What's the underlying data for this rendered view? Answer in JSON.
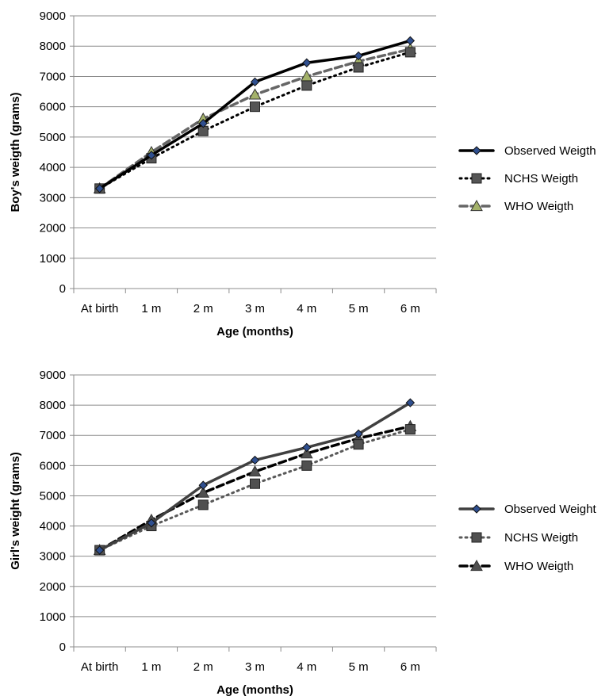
{
  "chart_data": [
    {
      "type": "line",
      "categories": [
        "At birth",
        "1 m",
        "2 m",
        "3 m",
        "4 m",
        "5 m",
        "6 m"
      ],
      "xlabel": "Age (months)",
      "ylabel": "Boy's weigth (grams)",
      "ylim": [
        0,
        9000
      ],
      "yticks": [
        0,
        1000,
        2000,
        3000,
        4000,
        5000,
        6000,
        7000,
        8000,
        9000
      ],
      "grid": true,
      "legend_position": "right",
      "series": [
        {
          "name": "Observed Weigth",
          "values": [
            3300,
            4400,
            5450,
            6820,
            7450,
            7680,
            8180
          ],
          "color": "#000000",
          "line": "solid",
          "marker": "diamond",
          "marker_fill": "#2f4f8f"
        },
        {
          "name": "NCHS Weigth",
          "values": [
            3300,
            4300,
            5200,
            6000,
            6700,
            7300,
            7800
          ],
          "color": "#000000",
          "line": "dotted",
          "marker": "square",
          "marker_fill": "#555555"
        },
        {
          "name": "WHO Weigth",
          "values": [
            3300,
            4500,
            5600,
            6400,
            7000,
            7500,
            7900
          ],
          "color": "#666666",
          "line": "dashed",
          "marker": "triangle",
          "marker_fill": "#a4b26a"
        }
      ]
    },
    {
      "type": "line",
      "categories": [
        "At birth",
        "1 m",
        "2 m",
        "3 m",
        "4 m",
        "5 m",
        "6 m"
      ],
      "xlabel": "Age (months)",
      "ylabel": "Girl's weight (grams)",
      "ylim": [
        0,
        9000
      ],
      "yticks": [
        0,
        1000,
        2000,
        3000,
        4000,
        5000,
        6000,
        7000,
        8000,
        9000
      ],
      "grid": true,
      "legend_position": "right",
      "series": [
        {
          "name": "Observed Weight",
          "values": [
            3200,
            4100,
            5350,
            6180,
            6600,
            7050,
            8080
          ],
          "color": "#404040",
          "line": "solid",
          "marker": "diamond",
          "marker_fill": "#2f4f8f"
        },
        {
          "name": "NCHS Weigth",
          "values": [
            3200,
            4000,
            4700,
            5400,
            6000,
            6700,
            7200
          ],
          "color": "#595959",
          "line": "dotted",
          "marker": "square",
          "marker_fill": "#505050"
        },
        {
          "name": "WHO Weigth",
          "values": [
            3200,
            4200,
            5100,
            5800,
            6400,
            6900,
            7300
          ],
          "color": "#000000",
          "line": "dashed",
          "marker": "triangle",
          "marker_fill": "#505050"
        }
      ]
    }
  ]
}
